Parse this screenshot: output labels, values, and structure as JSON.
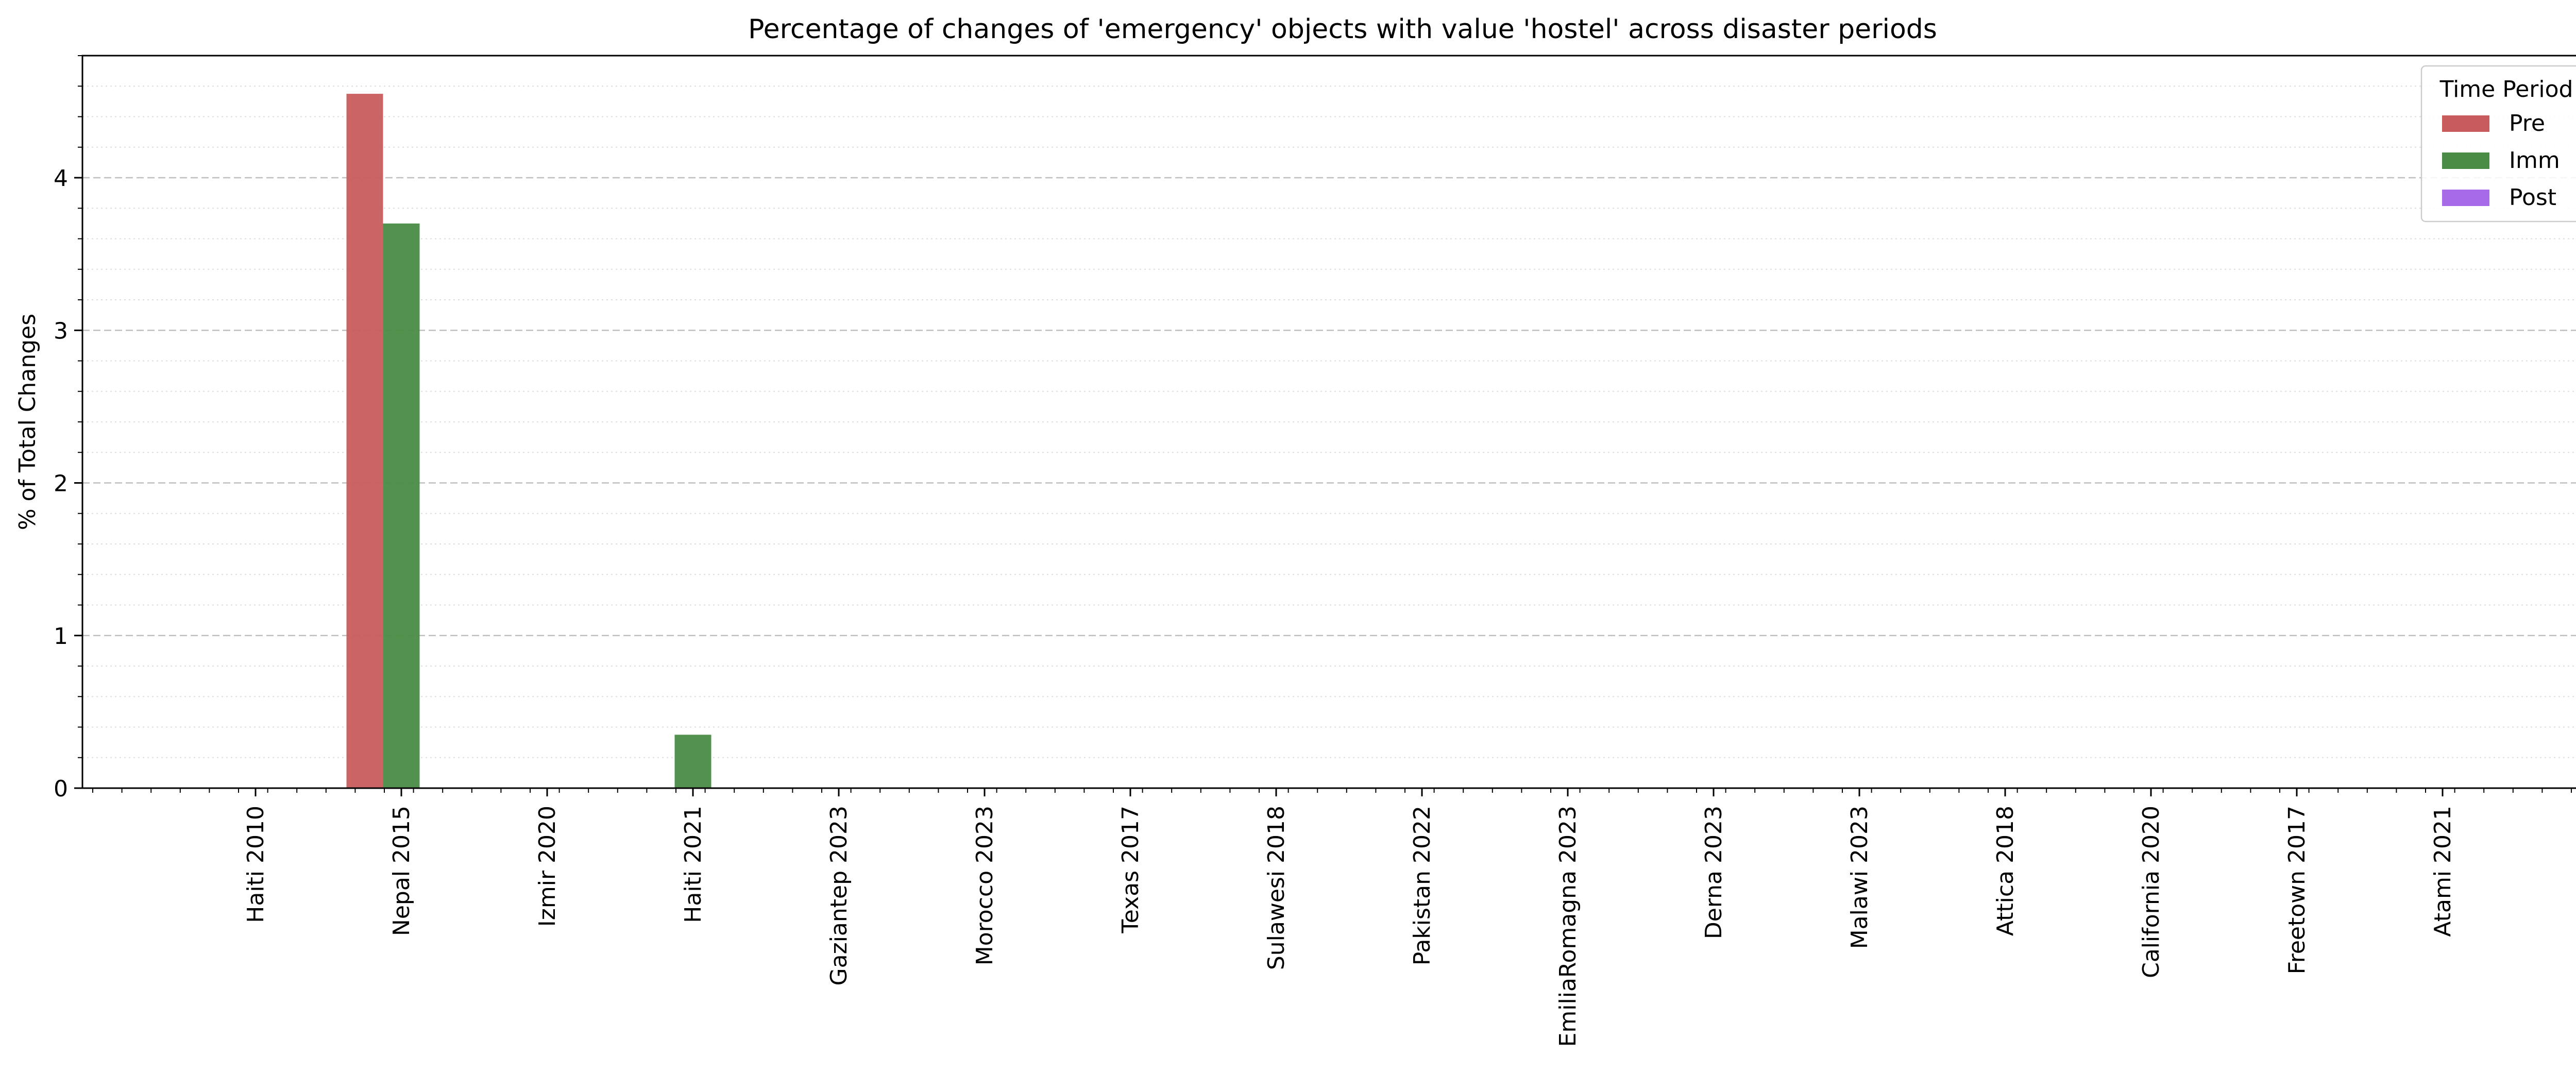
{
  "chart_data": {
    "type": "bar",
    "title": "Percentage of changes of 'emergency' objects with value 'hostel' across disaster periods",
    "xlabel": "",
    "ylabel": "% of Total Changes",
    "ylim": [
      0,
      4.8
    ],
    "yticks": [
      0,
      1,
      2,
      3,
      4
    ],
    "grid": true,
    "legend_title": "Time Period",
    "legend_position": "top-right",
    "categories": [
      "Haiti 2010",
      "Nepal 2015",
      "Izmir 2020",
      "Haiti 2021",
      "Gaziantep 2023",
      "Morocco 2023",
      "Texas 2017",
      "Sulawesi 2018",
      "Pakistan 2022",
      "EmiliaRomagna 2023",
      "Derna 2023",
      "Malawi 2023",
      "Attica 2018",
      "California 2020",
      "Freetown 2017",
      "Atami 2021"
    ],
    "series": [
      {
        "name": "Pre",
        "color": "#c85c5c",
        "values": [
          0,
          4.55,
          0,
          0,
          0,
          0,
          0,
          0,
          0,
          0,
          0,
          0,
          0,
          0,
          0,
          0
        ]
      },
      {
        "name": "Imm",
        "color": "#4a8c45",
        "values": [
          0,
          3.7,
          0,
          0.35,
          0,
          0,
          0,
          0,
          0,
          0,
          0,
          0,
          0,
          0,
          0,
          0
        ]
      },
      {
        "name": "Post",
        "color": "#a86be8",
        "values": [
          0,
          0,
          0,
          0,
          0,
          0,
          0,
          0,
          0,
          0,
          0,
          0,
          0,
          0,
          0,
          0
        ]
      }
    ]
  }
}
